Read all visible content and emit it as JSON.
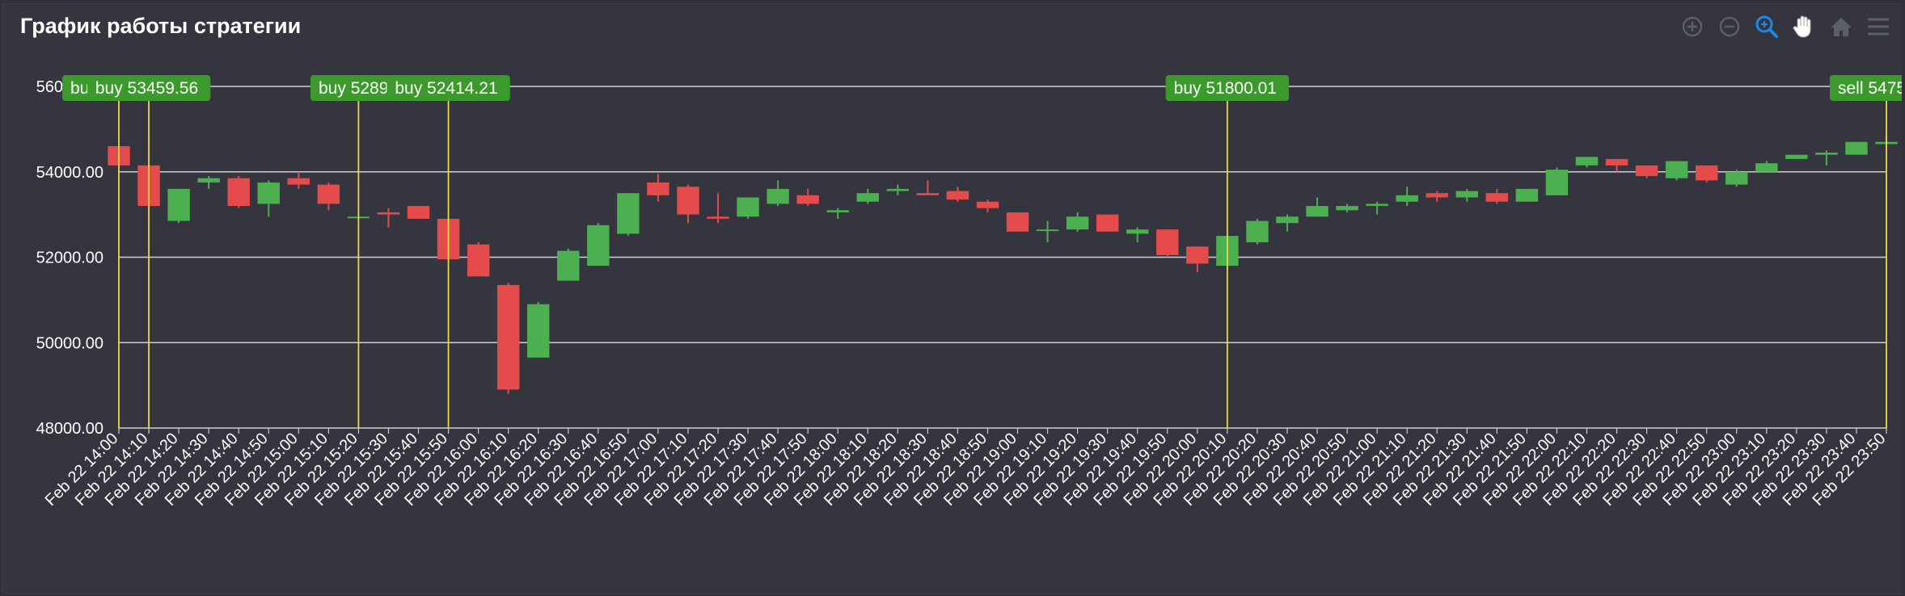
{
  "title": "График работы стратегии",
  "toolbar": {
    "icons": [
      "zoom-in-icon",
      "zoom-out-icon",
      "zoom-selection-icon",
      "pan-hand-icon",
      "home-reset-icon",
      "menu-icon"
    ],
    "active": "zoom-selection-icon",
    "icon_color": "#5b5e6b",
    "active_color": "#1e88e5"
  },
  "colors": {
    "up": "#4caf50",
    "down": "#e54b4b",
    "grid": "#cfd0d4",
    "axis_text": "#ffffff",
    "marker_line": "#f2d640",
    "marker_label_bg": "#3c9a2c"
  },
  "chart_data": {
    "type": "candlestick",
    "yaxis": {
      "min": 48000,
      "max": 56000,
      "ticks": [
        "48000.00",
        "50000.00",
        "52000.00",
        "54000.00",
        "56000.00"
      ]
    },
    "categories": [
      "Feb 22 14:00",
      "Feb 22 14:10",
      "Feb 22 14:20",
      "Feb 22 14:30",
      "Feb 22 14:40",
      "Feb 22 14:50",
      "Feb 22 15:00",
      "Feb 22 15:10",
      "Feb 22 15:20",
      "Feb 22 15:30",
      "Feb 22 15:40",
      "Feb 22 15:50",
      "Feb 22 16:00",
      "Feb 22 16:10",
      "Feb 22 16:20",
      "Feb 22 16:30",
      "Feb 22 16:40",
      "Feb 22 16:50",
      "Feb 22 17:00",
      "Feb 22 17:10",
      "Feb 22 17:20",
      "Feb 22 17:30",
      "Feb 22 17:40",
      "Feb 22 17:50",
      "Feb 22 18:00",
      "Feb 22 18:10",
      "Feb 22 18:20",
      "Feb 22 18:30",
      "Feb 22 18:40",
      "Feb 22 18:50",
      "Feb 22 19:00",
      "Feb 22 19:10",
      "Feb 22 19:20",
      "Feb 22 19:30",
      "Feb 22 19:40",
      "Feb 22 19:50",
      "Feb 22 20:00",
      "Feb 22 20:10",
      "Feb 22 20:20",
      "Feb 22 20:30",
      "Feb 22 20:40",
      "Feb 22 20:50",
      "Feb 22 21:00",
      "Feb 22 21:10",
      "Feb 22 21:20",
      "Feb 22 21:30",
      "Feb 22 21:40",
      "Feb 22 21:50",
      "Feb 22 22:00",
      "Feb 22 22:10",
      "Feb 22 22:20",
      "Feb 22 22:30",
      "Feb 22 22:40",
      "Feb 22 22:50",
      "Feb 22 23:00",
      "Feb 22 23:10",
      "Feb 22 23:20",
      "Feb 22 23:30",
      "Feb 22 23:40",
      "Feb 22 23:50"
    ],
    "candles": [
      {
        "o": 54600,
        "h": 54620,
        "l": 54100,
        "c": 54150
      },
      {
        "o": 54150,
        "h": 54200,
        "l": 53200,
        "c": 53200
      },
      {
        "o": 52850,
        "h": 53600,
        "l": 52800,
        "c": 53600
      },
      {
        "o": 53750,
        "h": 53900,
        "l": 53600,
        "c": 53850
      },
      {
        "o": 53850,
        "h": 53900,
        "l": 53150,
        "c": 53200
      },
      {
        "o": 53250,
        "h": 53800,
        "l": 52950,
        "c": 53750
      },
      {
        "o": 53850,
        "h": 54000,
        "l": 53600,
        "c": 53700
      },
      {
        "o": 53700,
        "h": 53750,
        "l": 53100,
        "c": 53250
      },
      {
        "o": 52950,
        "h": 53000,
        "l": 52900,
        "c": 52950
      },
      {
        "o": 53050,
        "h": 53150,
        "l": 52700,
        "c": 53000
      },
      {
        "o": 53200,
        "h": 53200,
        "l": 52900,
        "c": 52900
      },
      {
        "o": 52900,
        "h": 52900,
        "l": 51950,
        "c": 51950
      },
      {
        "o": 52300,
        "h": 52350,
        "l": 51550,
        "c": 51550
      },
      {
        "o": 51350,
        "h": 51400,
        "l": 48800,
        "c": 48900
      },
      {
        "o": 49650,
        "h": 50950,
        "l": 49650,
        "c": 50900
      },
      {
        "o": 51450,
        "h": 52200,
        "l": 51450,
        "c": 52150
      },
      {
        "o": 51800,
        "h": 52800,
        "l": 51800,
        "c": 52750
      },
      {
        "o": 52550,
        "h": 53500,
        "l": 52500,
        "c": 53500
      },
      {
        "o": 53750,
        "h": 53950,
        "l": 53300,
        "c": 53450
      },
      {
        "o": 53650,
        "h": 53700,
        "l": 52800,
        "c": 53000
      },
      {
        "o": 52950,
        "h": 53500,
        "l": 52800,
        "c": 52900
      },
      {
        "o": 52950,
        "h": 53400,
        "l": 52900,
        "c": 53400
      },
      {
        "o": 53250,
        "h": 53800,
        "l": 53200,
        "c": 53600
      },
      {
        "o": 53450,
        "h": 53600,
        "l": 53200,
        "c": 53250
      },
      {
        "o": 53050,
        "h": 53150,
        "l": 52900,
        "c": 53100
      },
      {
        "o": 53300,
        "h": 53600,
        "l": 53250,
        "c": 53500
      },
      {
        "o": 53550,
        "h": 53700,
        "l": 53450,
        "c": 53600
      },
      {
        "o": 53500,
        "h": 53800,
        "l": 53450,
        "c": 53450
      },
      {
        "o": 53550,
        "h": 53650,
        "l": 53300,
        "c": 53350
      },
      {
        "o": 53300,
        "h": 53350,
        "l": 53050,
        "c": 53150
      },
      {
        "o": 53050,
        "h": 53050,
        "l": 52600,
        "c": 52600
      },
      {
        "o": 52650,
        "h": 52850,
        "l": 52350,
        "c": 52650
      },
      {
        "o": 52650,
        "h": 53050,
        "l": 52600,
        "c": 52950
      },
      {
        "o": 53000,
        "h": 53000,
        "l": 52600,
        "c": 52600
      },
      {
        "o": 52550,
        "h": 52700,
        "l": 52350,
        "c": 52650
      },
      {
        "o": 52650,
        "h": 52650,
        "l": 52000,
        "c": 52050
      },
      {
        "o": 52250,
        "h": 52250,
        "l": 51650,
        "c": 51850
      },
      {
        "o": 51800,
        "h": 52500,
        "l": 51800,
        "c": 52500
      },
      {
        "o": 52350,
        "h": 52900,
        "l": 52300,
        "c": 52850
      },
      {
        "o": 52800,
        "h": 53000,
        "l": 52600,
        "c": 52950
      },
      {
        "o": 52950,
        "h": 53400,
        "l": 52950,
        "c": 53200
      },
      {
        "o": 53100,
        "h": 53250,
        "l": 53050,
        "c": 53200
      },
      {
        "o": 53200,
        "h": 53300,
        "l": 53000,
        "c": 53250
      },
      {
        "o": 53300,
        "h": 53650,
        "l": 53200,
        "c": 53450
      },
      {
        "o": 53500,
        "h": 53550,
        "l": 53300,
        "c": 53400
      },
      {
        "o": 53400,
        "h": 53600,
        "l": 53300,
        "c": 53550
      },
      {
        "o": 53500,
        "h": 53600,
        "l": 53250,
        "c": 53300
      },
      {
        "o": 53300,
        "h": 53600,
        "l": 53300,
        "c": 53600
      },
      {
        "o": 53450,
        "h": 54100,
        "l": 53450,
        "c": 54050
      },
      {
        "o": 54150,
        "h": 54350,
        "l": 54100,
        "c": 54350
      },
      {
        "o": 54300,
        "h": 54300,
        "l": 54000,
        "c": 54150
      },
      {
        "o": 54150,
        "h": 54150,
        "l": 53850,
        "c": 53900
      },
      {
        "o": 53850,
        "h": 54250,
        "l": 53800,
        "c": 54250
      },
      {
        "o": 54150,
        "h": 54150,
        "l": 53750,
        "c": 53800
      },
      {
        "o": 53700,
        "h": 54050,
        "l": 53650,
        "c": 54000
      },
      {
        "o": 54000,
        "h": 54250,
        "l": 54000,
        "c": 54200
      },
      {
        "o": 54300,
        "h": 54400,
        "l": 54300,
        "c": 54400
      },
      {
        "o": 54400,
        "h": 54500,
        "l": 54150,
        "c": 54450
      },
      {
        "o": 54400,
        "h": 54700,
        "l": 54400,
        "c": 54700
      },
      {
        "o": 54650,
        "h": 54850,
        "l": 54600,
        "c": 54700
      }
    ],
    "markers": [
      {
        "index": 0,
        "label": "buy 53459.56"
      },
      {
        "index": 1,
        "label": "buy 53459.56"
      },
      {
        "index": 8,
        "label": "buy 52898"
      },
      {
        "index": 11,
        "label": "buy 52414.21"
      },
      {
        "index": 37,
        "label": "buy 51800.01"
      },
      {
        "index": 59,
        "label": "sell 5475"
      }
    ]
  }
}
